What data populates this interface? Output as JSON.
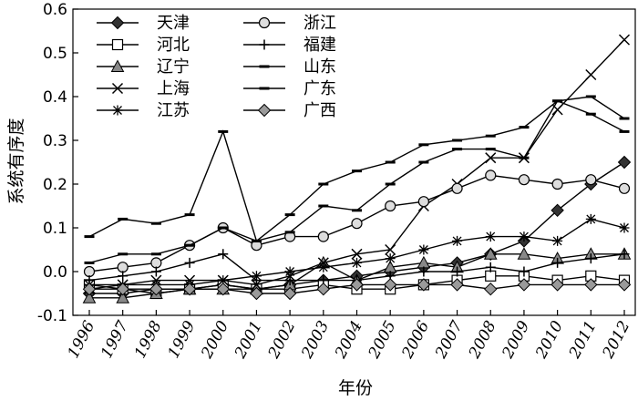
{
  "chart_data": {
    "type": "line",
    "xlabel": "年份",
    "ylabel": "系统有序度",
    "x": [
      1996,
      1997,
      1998,
      1999,
      2000,
      2001,
      2002,
      2003,
      2004,
      2005,
      2006,
      2007,
      2008,
      2009,
      2010,
      2011,
      2012
    ],
    "xticks": [
      "1996",
      "1997",
      "1998",
      "1999",
      "2000",
      "2001",
      "2002",
      "2003",
      "2004",
      "2005",
      "2006",
      "2007",
      "2008",
      "2009",
      "2010",
      "2011",
      "2012"
    ],
    "ylim": [
      -0.1,
      0.6
    ],
    "yticks": [
      "-0.1",
      "0.0",
      "0.1",
      "0.2",
      "0.3",
      "0.4",
      "0.5",
      "0.6"
    ],
    "yticks_values": [
      -0.1,
      0.0,
      0.1,
      0.2,
      0.3,
      0.4,
      0.5,
      0.6
    ],
    "grid": false,
    "legend_position": "top-left",
    "series": [
      {
        "name": "天津",
        "marker": "diamond-filled",
        "values": [
          -0.05,
          -0.05,
          -0.04,
          -0.04,
          -0.03,
          -0.04,
          -0.03,
          -0.02,
          -0.01,
          0.0,
          0.01,
          0.02,
          0.04,
          0.07,
          0.14,
          0.2,
          0.25
        ]
      },
      {
        "name": "河北",
        "marker": "square-open",
        "values": [
          -0.03,
          -0.04,
          -0.05,
          -0.04,
          -0.03,
          -0.04,
          -0.04,
          -0.03,
          -0.04,
          -0.04,
          -0.03,
          -0.02,
          -0.01,
          -0.01,
          -0.02,
          -0.01,
          -0.02
        ]
      },
      {
        "name": "辽宁",
        "marker": "triangle-filled",
        "values": [
          -0.06,
          -0.06,
          -0.05,
          -0.04,
          -0.04,
          -0.04,
          -0.03,
          0.02,
          -0.02,
          0.01,
          0.02,
          0.01,
          0.04,
          0.04,
          0.03,
          0.04,
          0.04
        ]
      },
      {
        "name": "上海",
        "marker": "x",
        "values": [
          -0.04,
          -0.03,
          -0.02,
          -0.02,
          -0.02,
          -0.03,
          -0.01,
          0.02,
          0.04,
          0.05,
          0.15,
          0.2,
          0.26,
          0.26,
          0.37,
          0.45,
          0.53
        ]
      },
      {
        "name": "江苏",
        "marker": "asterisk",
        "values": [
          -0.03,
          -0.03,
          -0.03,
          -0.03,
          -0.02,
          -0.01,
          0.0,
          0.01,
          0.02,
          0.03,
          0.05,
          0.07,
          0.08,
          0.08,
          0.07,
          0.12,
          0.1
        ]
      },
      {
        "name": "浙江",
        "marker": "circle-open",
        "values": [
          0.0,
          0.01,
          0.02,
          0.06,
          0.1,
          0.06,
          0.08,
          0.08,
          0.11,
          0.15,
          0.16,
          0.19,
          0.22,
          0.21,
          0.2,
          0.21,
          0.19
        ]
      },
      {
        "name": "福建",
        "marker": "plus",
        "values": [
          -0.02,
          -0.01,
          0.0,
          0.02,
          0.04,
          -0.02,
          -0.02,
          -0.02,
          -0.02,
          -0.01,
          0.0,
          0.0,
          0.01,
          0.0,
          0.02,
          0.03,
          0.04
        ]
      },
      {
        "name": "山东",
        "marker": "dash",
        "values": [
          0.02,
          0.04,
          0.04,
          0.06,
          0.1,
          0.07,
          0.09,
          0.15,
          0.14,
          0.2,
          0.25,
          0.28,
          0.28,
          0.26,
          0.39,
          0.4,
          0.35
        ]
      },
      {
        "name": "广东",
        "marker": "dash",
        "values": [
          0.08,
          0.12,
          0.11,
          0.13,
          0.32,
          0.07,
          0.13,
          0.2,
          0.23,
          0.25,
          0.29,
          0.3,
          0.31,
          0.33,
          0.39,
          0.36,
          0.32
        ]
      },
      {
        "name": "广西",
        "marker": "diamond-gray",
        "values": [
          -0.04,
          -0.04,
          -0.04,
          -0.04,
          -0.04,
          -0.05,
          -0.05,
          -0.04,
          -0.03,
          -0.03,
          -0.03,
          -0.03,
          -0.04,
          -0.03,
          -0.03,
          -0.03,
          -0.03
        ]
      }
    ]
  }
}
